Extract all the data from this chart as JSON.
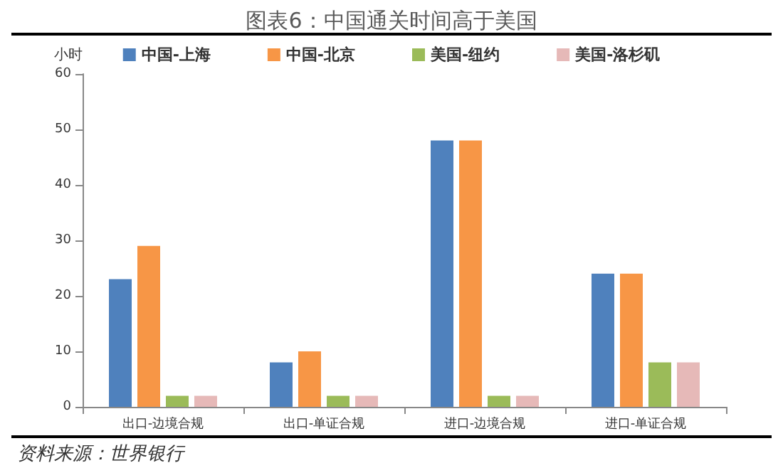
{
  "chart_data": {
    "type": "bar",
    "title": "图表6：中国通关时间高于美国",
    "ylabel": "小时",
    "categories": [
      "出口-边境合规",
      "出口-单证合规",
      "进口-边境合规",
      "进口-单证合规"
    ],
    "series": [
      {
        "name": "中国-上海",
        "color": "#4f81bd",
        "values": [
          23,
          8,
          48,
          24
        ]
      },
      {
        "name": "中国-北京",
        "color": "#f79646",
        "values": [
          29,
          10,
          48,
          24
        ]
      },
      {
        "name": "美国-纽约",
        "color": "#9bbb59",
        "values": [
          2,
          2,
          2,
          8
        ]
      },
      {
        "name": "美国-洛杉矶",
        "color": "#e6b9b8",
        "values": [
          2,
          2,
          2,
          8
        ]
      }
    ],
    "ylim": [
      0,
      60
    ],
    "yticks": [
      0,
      10,
      20,
      30,
      40,
      50,
      60
    ],
    "grid": false,
    "legend": "top",
    "annotations": [
      "资料来源：世界银行"
    ]
  }
}
